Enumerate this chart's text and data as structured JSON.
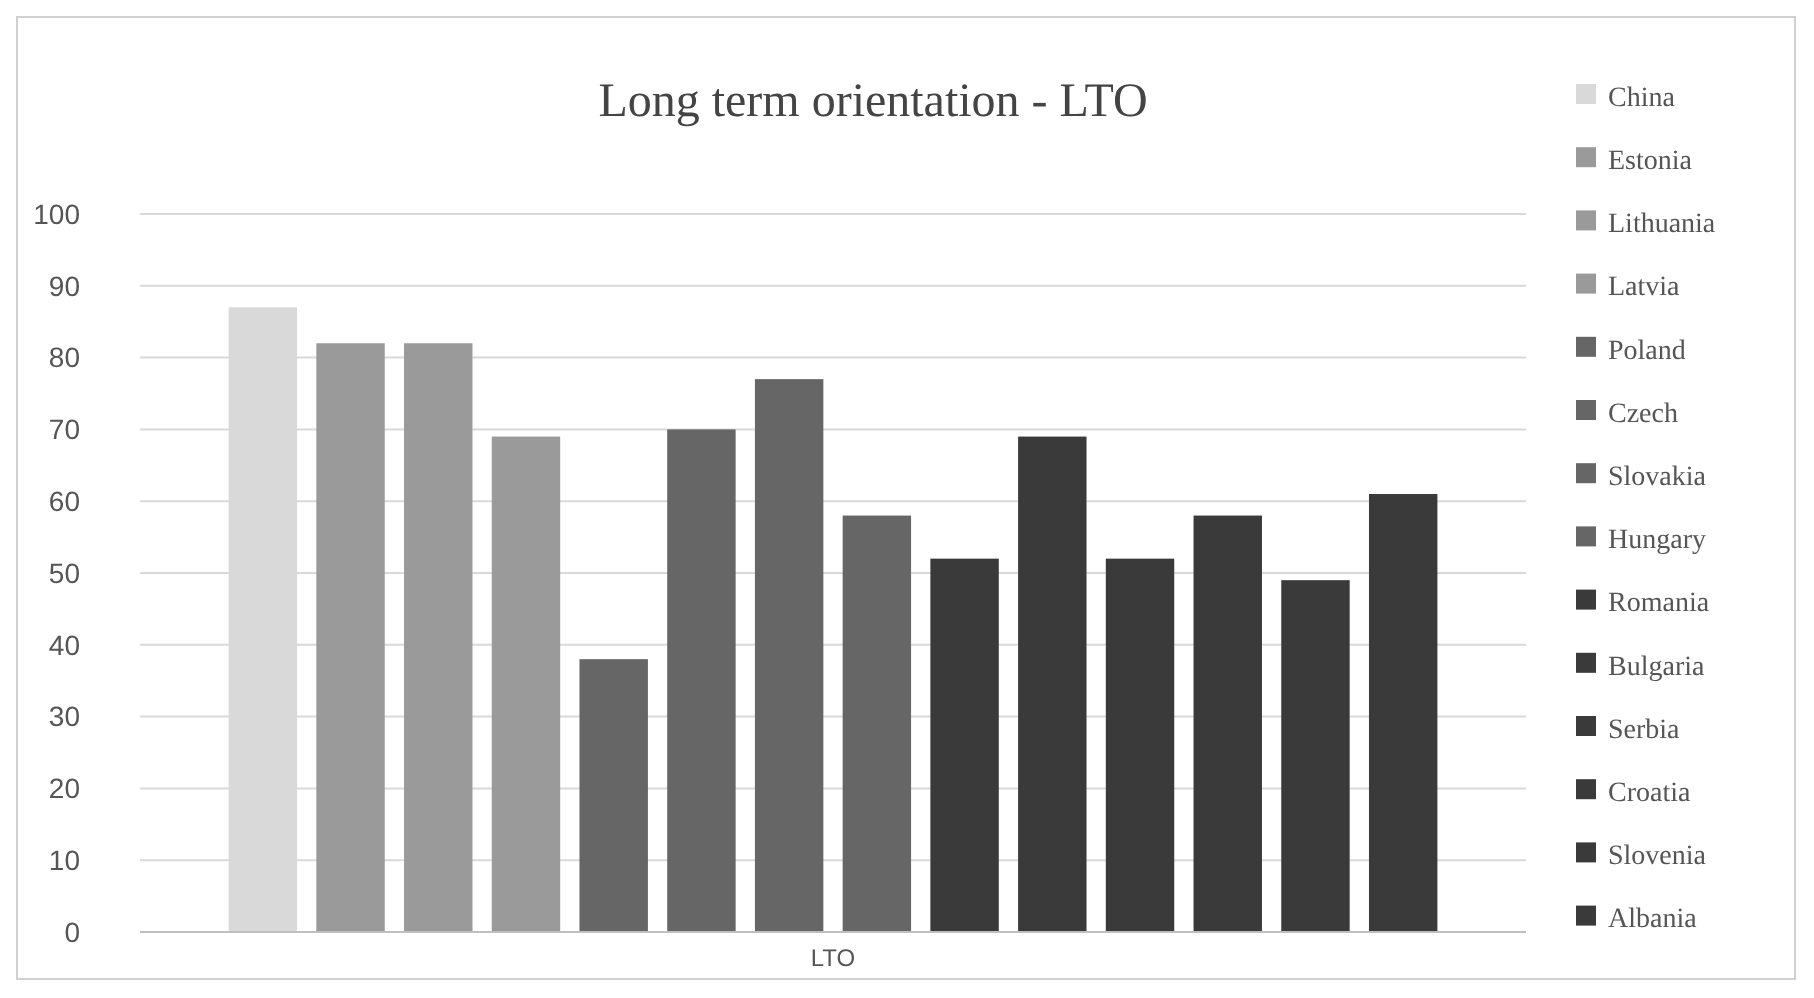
{
  "chart_data": {
    "type": "bar",
    "title": "Long term orientation - LTO",
    "categories": [
      "LTO"
    ],
    "series": [
      {
        "name": "China",
        "color": "#d9d9d9",
        "values": [
          87
        ]
      },
      {
        "name": "Estonia",
        "color": "#9a9a9a",
        "values": [
          82
        ]
      },
      {
        "name": "Lithuania",
        "color": "#9a9a9a",
        "values": [
          82
        ]
      },
      {
        "name": "Latvia",
        "color": "#9a9a9a",
        "values": [
          69
        ]
      },
      {
        "name": "Poland",
        "color": "#666666",
        "values": [
          38
        ]
      },
      {
        "name": "Czech",
        "color": "#666666",
        "values": [
          70
        ]
      },
      {
        "name": "Slovakia",
        "color": "#666666",
        "values": [
          77
        ]
      },
      {
        "name": "Hungary",
        "color": "#666666",
        "values": [
          58
        ]
      },
      {
        "name": "Romania",
        "color": "#3a3a3a",
        "values": [
          52
        ]
      },
      {
        "name": "Bulgaria",
        "color": "#3a3a3a",
        "values": [
          69
        ]
      },
      {
        "name": "Serbia",
        "color": "#3a3a3a",
        "values": [
          52
        ]
      },
      {
        "name": "Croatia",
        "color": "#3a3a3a",
        "values": [
          58
        ]
      },
      {
        "name": "Slovenia",
        "color": "#3a3a3a",
        "values": [
          49
        ]
      },
      {
        "name": "Albania",
        "color": "#3a3a3a",
        "values": [
          61
        ]
      }
    ],
    "ylim": [
      0,
      100
    ],
    "yticks": [
      0,
      10,
      20,
      30,
      40,
      50,
      60,
      70,
      80,
      90,
      100
    ],
    "grid": "y",
    "legend": "right"
  }
}
